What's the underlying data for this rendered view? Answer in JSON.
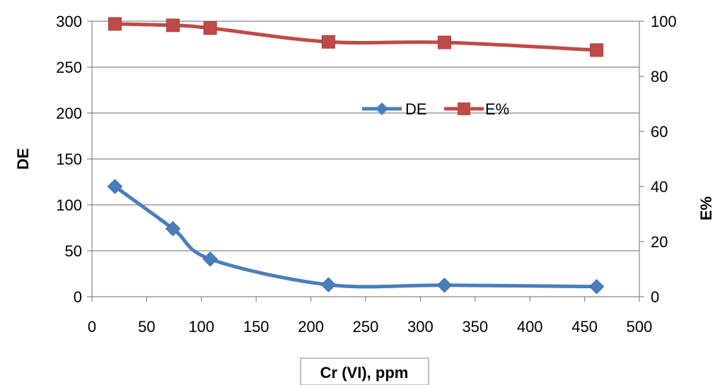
{
  "chart_data": {
    "type": "line",
    "xlabel": "Cr (VI), ppm",
    "ylabel": "DE",
    "y2label": "E%",
    "xlim": [
      0,
      500
    ],
    "ylim": [
      0,
      300
    ],
    "y2lim": [
      0,
      100
    ],
    "xticks": [
      0,
      50,
      100,
      150,
      200,
      250,
      300,
      350,
      400,
      450,
      500
    ],
    "yticks": [
      0,
      50,
      100,
      150,
      200,
      250,
      300
    ],
    "y2ticks": [
      0,
      20,
      40,
      60,
      80,
      100
    ],
    "grid": "horizontal",
    "legend_position": "center-right",
    "series": [
      {
        "name": "DE",
        "axis": "left",
        "color": "#4a7ebb",
        "marker": "diamond",
        "x": [
          21,
          74,
          108,
          216,
          322,
          461
        ],
        "y": [
          120,
          74,
          41,
          13,
          12.5,
          11
        ]
      },
      {
        "name": "E%",
        "axis": "right",
        "color": "#be4b48",
        "marker": "square",
        "x": [
          21,
          74,
          108,
          216,
          322,
          461
        ],
        "y": [
          99,
          98.5,
          97.5,
          92.5,
          92.3,
          89.5
        ]
      }
    ]
  }
}
